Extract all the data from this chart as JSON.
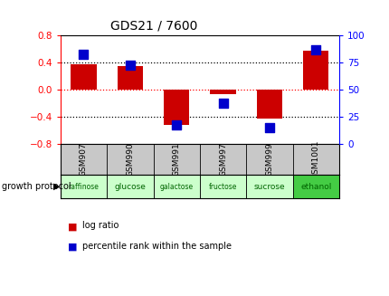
{
  "title": "GDS21 / 7600",
  "samples": [
    "GSM907",
    "GSM990",
    "GSM991",
    "GSM997",
    "GSM999",
    "GSM1001"
  ],
  "growth_labels": [
    "raffinose",
    "glucose",
    "galactose",
    "fructose",
    "sucrose",
    "ethanol"
  ],
  "log_ratios": [
    0.38,
    0.35,
    -0.52,
    -0.06,
    -0.42,
    0.57
  ],
  "percentile_ranks": [
    83,
    73,
    18,
    38,
    15,
    87
  ],
  "bar_color": "#cc0000",
  "dot_color": "#0000cc",
  "ylim_left": [
    -0.8,
    0.8
  ],
  "ylim_right": [
    0,
    100
  ],
  "yticks_left": [
    -0.8,
    -0.4,
    0.0,
    0.4,
    0.8
  ],
  "yticks_right": [
    0,
    25,
    50,
    75,
    100
  ],
  "hlines_dotted": [
    0.4,
    -0.4
  ],
  "hline_dashed_val": 0.0,
  "growth_colors": [
    "#ccffcc",
    "#ccffcc",
    "#ccffcc",
    "#ccffcc",
    "#ccffcc",
    "#44cc44"
  ],
  "bar_width": 0.55,
  "dot_size": 50,
  "gsm_bg": "#c8c8c8",
  "title_color": "black",
  "left_tick_color": "red",
  "right_tick_color": "blue"
}
